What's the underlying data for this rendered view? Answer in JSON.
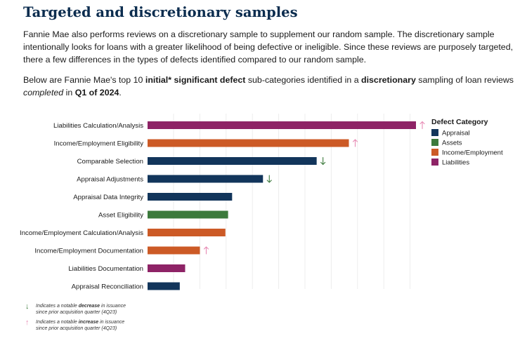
{
  "page": {
    "title": "Targeted and discretionary samples",
    "intro": "Fannie Mae also performs reviews on a discretionary sample to supplement our random sample. The discretionary sample intentionally looks for loans with a greater likelihood of being defective or ineligible. Since these reviews are purposely targeted, there a few differences in the types of defects identified compared to our random sample.",
    "lead": {
      "t1": "Below are Fannie Mae's top 10 ",
      "b1": "initial* significant defect",
      "t2": " sub-categories identified in a ",
      "b2": "discretionary",
      "t3": " sampling of loan reviews ",
      "i1": "completed",
      "t4": " in ",
      "b3": "Q1 of 2024",
      "t5": "."
    }
  },
  "chart_data": {
    "type": "bar",
    "orientation": "horizontal",
    "categories": [
      "Liabilities Calculation/Analysis",
      "Income/Employment Eligibility",
      "Comparable Selection",
      "Appraisal Adjustments",
      "Appraisal Data Integrity",
      "Asset Eligibility",
      "Income/Employment Calculation/Analysis",
      "Income/Employment Documentation",
      "Liabilities Documentation",
      "Appraisal Reconciliation"
    ],
    "values": [
      100,
      75,
      63,
      43,
      31.5,
      30,
      29,
      19.5,
      14,
      12
    ],
    "value_categories": [
      "Liabilities",
      "Income/Employment",
      "Appraisal",
      "Appraisal",
      "Appraisal",
      "Assets",
      "Income/Employment",
      "Income/Employment",
      "Liabilities",
      "Appraisal"
    ],
    "trend": [
      "up",
      "up",
      "down",
      "down",
      "",
      "",
      "",
      "up",
      "",
      ""
    ],
    "xlim": [
      0,
      100
    ],
    "gridlines": true,
    "axis_labels_shown": false,
    "legend": {
      "title": "Defect Category",
      "placement": "top-right",
      "items": [
        {
          "name": "Appraisal",
          "color": "#12355b"
        },
        {
          "name": "Assets",
          "color": "#3c7a3c"
        },
        {
          "name": "Income/Employment",
          "color": "#cc5a26"
        },
        {
          "name": "Liabilities",
          "color": "#8e2366"
        }
      ]
    },
    "trend_colors": {
      "up": "#e78ab4",
      "down": "#3c7a3c"
    }
  },
  "notes": {
    "decrease": {
      "arrow": "↓",
      "t1": "Indicates a notable ",
      "b": "decrease",
      "t2": " in issuance",
      "line2": "since prior acquisition quarter (4Q23)"
    },
    "increase": {
      "arrow": "↑",
      "t1": "Indicates a notable ",
      "b": "increase",
      "t2": " in issuance",
      "line2": "since prior acquisition quarter (4Q23)"
    }
  }
}
